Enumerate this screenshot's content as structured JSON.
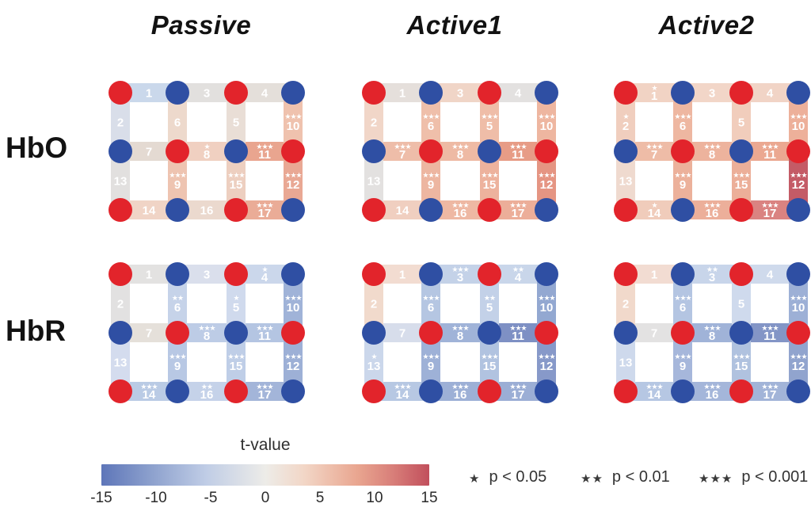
{
  "figure": {
    "col_titles": [
      "Passive",
      "Active1",
      "Active2"
    ],
    "row_labels": [
      "HbO",
      "HbR"
    ],
    "colorbar": {
      "title": "t-value",
      "ticks": [
        "-15",
        "-10",
        "-5",
        "0",
        "5",
        "10",
        "15"
      ],
      "gradient_stops": [
        "#5E76B9 0%",
        "#8CA0CD 15%",
        "#C0CDE6 32%",
        "#EDECE8 50%",
        "#F2D6C6 62%",
        "#E9A690 78%",
        "#D87E79 89%",
        "#C14F5C 100%"
      ]
    },
    "legend": [
      {
        "stars": "★",
        "label": "p < 0.05"
      },
      {
        "stars": "★★",
        "label": "p < 0.01"
      },
      {
        "stars": "★★★",
        "label": "p < 0.001"
      }
    ],
    "optode_colors": {
      "source_red": "#E2242B",
      "detector_blue": "#2F4FA3"
    }
  },
  "chart_data": {
    "type": "heatmap",
    "title": "Channel-wise t-value maps (17 fNIRS channels) for HbO and HbR under Passive, Active1 and Active2 conditions",
    "t_range": [
      -15,
      15
    ],
    "significance_levels": {
      "1": "p < 0.05",
      "2": "p < 0.01",
      "3": "p < 0.001"
    },
    "grid": {
      "optode_pattern": [
        [
          "source",
          "detector",
          "source",
          "detector"
        ],
        [
          "detector",
          "source",
          "detector",
          "source"
        ],
        [
          "source",
          "detector",
          "source",
          "detector"
        ]
      ],
      "h_channels": [
        [
          1,
          3,
          4
        ],
        [
          7,
          8,
          11
        ],
        [
          14,
          16,
          17
        ]
      ],
      "v_channels": [
        [
          2,
          6,
          5,
          10
        ],
        [
          13,
          9,
          15,
          12
        ]
      ]
    },
    "channel_value_format": [
      "color_hex",
      "significance_stars",
      "t_value_estimate"
    ],
    "panels": [
      {
        "row": "HbO",
        "condition": "Passive",
        "channels": {
          "1": [
            "#CAD8EB",
            0,
            -2.5
          ],
          "2": [
            "#D9DEE9",
            0,
            -1
          ],
          "3": [
            "#E2E0DE",
            0,
            0.5
          ],
          "4": [
            "#E4DFDA",
            0,
            1
          ],
          "5": [
            "#E9DED6",
            0,
            1.5
          ],
          "6": [
            "#EDD9CC",
            0,
            2
          ],
          "7": [
            "#E4DAD2",
            0,
            1.5
          ],
          "8": [
            "#F0D0C1",
            1,
            3
          ],
          "9": [
            "#EEC4B1",
            3,
            5
          ],
          "10": [
            "#EFC2AE",
            3,
            5
          ],
          "11": [
            "#E9A58F",
            3,
            7.5
          ],
          "12": [
            "#E9A894",
            3,
            7.5
          ],
          "13": [
            "#E2E0DF",
            0,
            0.5
          ],
          "14": [
            "#F0D4C6",
            0,
            3
          ],
          "15": [
            "#EDCFC0",
            3,
            3.5
          ],
          "16": [
            "#EBD9CE",
            0,
            2
          ],
          "17": [
            "#EAAC97",
            3,
            7
          ]
        }
      },
      {
        "row": "HbO",
        "condition": "Active1",
        "channels": {
          "1": [
            "#E5DFDB",
            0,
            1
          ],
          "2": [
            "#F1D6C8",
            0,
            2.5
          ],
          "3": [
            "#F0D5C7",
            0,
            2.5
          ],
          "4": [
            "#E3E1E0",
            0,
            0.5
          ],
          "5": [
            "#EFBDA8",
            3,
            5
          ],
          "6": [
            "#EFBFAA",
            3,
            5
          ],
          "7": [
            "#EEBDA9",
            3,
            5
          ],
          "8": [
            "#EEBAA4",
            3,
            5.5
          ],
          "9": [
            "#EDB6A1",
            3,
            6
          ],
          "10": [
            "#EEB6A0",
            3,
            6
          ],
          "11": [
            "#E79C86",
            3,
            8
          ],
          "12": [
            "#E59583",
            3,
            8.5
          ],
          "13": [
            "#E3E1E0",
            0,
            0.5
          ],
          "14": [
            "#F0CFC0",
            0,
            3
          ],
          "15": [
            "#EDB29D",
            3,
            6.5
          ],
          "16": [
            "#EEB8A3",
            3,
            5.5
          ],
          "17": [
            "#ECAE99",
            3,
            7
          ]
        }
      },
      {
        "row": "HbO",
        "condition": "Active2",
        "channels": {
          "1": [
            "#F1D3C4",
            1,
            3
          ],
          "2": [
            "#F0CEBE",
            1,
            3.5
          ],
          "3": [
            "#F2D6C8",
            0,
            2.5
          ],
          "4": [
            "#F1D4C6",
            0,
            2.5
          ],
          "5": [
            "#F1CDBC",
            0,
            3.5
          ],
          "6": [
            "#EEB7A1",
            3,
            6
          ],
          "7": [
            "#EEBCA7",
            3,
            5
          ],
          "8": [
            "#EDB39D",
            3,
            6
          ],
          "9": [
            "#ECB19B",
            3,
            6.5
          ],
          "10": [
            "#EDB09A",
            3,
            6.5
          ],
          "11": [
            "#EBA891",
            3,
            7.5
          ],
          "12": [
            "#C45B66",
            3,
            13
          ],
          "13": [
            "#EFDACF",
            0,
            2
          ],
          "14": [
            "#F0CCBB",
            1,
            3.5
          ],
          "15": [
            "#ECAF99",
            3,
            6.5
          ],
          "16": [
            "#ECAF9A",
            3,
            6.5
          ],
          "17": [
            "#DA8381",
            3,
            10
          ]
        }
      },
      {
        "row": "HbR",
        "condition": "Passive",
        "channels": {
          "1": [
            "#E3E2E1",
            0,
            -0.5
          ],
          "2": [
            "#E2E1E1",
            0,
            -0.5
          ],
          "3": [
            "#DADFEC",
            0,
            -1.5
          ],
          "4": [
            "#CBD7EB",
            1,
            -2.5
          ],
          "5": [
            "#D0DAED",
            1,
            -2
          ],
          "6": [
            "#C6D3E9",
            2,
            -3
          ],
          "7": [
            "#E5E0DA",
            0,
            0.5
          ],
          "8": [
            "#BDCCE6",
            3,
            -3.5
          ],
          "9": [
            "#B8C8E4",
            3,
            -4
          ],
          "10": [
            "#A0B3D8",
            3,
            -6
          ],
          "11": [
            "#B4C5E2",
            3,
            -4.5
          ],
          "12": [
            "#9DB0D6",
            3,
            -6
          ],
          "13": [
            "#D4DCEE",
            0,
            -2
          ],
          "14": [
            "#BACBE5",
            3,
            -4
          ],
          "15": [
            "#BFCEE7",
            3,
            -3.5
          ],
          "16": [
            "#C5D2E9",
            2,
            -3
          ],
          "17": [
            "#A3B5D9",
            3,
            -5.5
          ]
        }
      },
      {
        "row": "HbR",
        "condition": "Active1",
        "channels": {
          "1": [
            "#F2DCD1",
            0,
            1.5
          ],
          "2": [
            "#F1DACC",
            0,
            1.5
          ],
          "3": [
            "#C4D2E8",
            3,
            -3
          ],
          "4": [
            "#C9D6EA",
            2,
            -2.5
          ],
          "5": [
            "#C3D1E8",
            2,
            -3
          ],
          "6": [
            "#B5C6E2",
            3,
            -4.5
          ],
          "7": [
            "#D7DDEB",
            0,
            -1.5
          ],
          "8": [
            "#A0B3D8",
            3,
            -6
          ],
          "9": [
            "#9EB1D7",
            3,
            -6
          ],
          "10": [
            "#93A8D1",
            3,
            -7
          ],
          "11": [
            "#7E90C4",
            3,
            -9
          ],
          "12": [
            "#8799C9",
            3,
            -8
          ],
          "13": [
            "#CBD7EB",
            1,
            -2.5
          ],
          "14": [
            "#B7C8E3",
            3,
            -4
          ],
          "15": [
            "#B1C3E0",
            3,
            -4.5
          ],
          "16": [
            "#9DB0D6",
            3,
            -6
          ],
          "17": [
            "#9BAED5",
            3,
            -6.5
          ]
        }
      },
      {
        "row": "HbR",
        "condition": "Active2",
        "channels": {
          "1": [
            "#F2DCD2",
            0,
            1.5
          ],
          "2": [
            "#F1D9CB",
            0,
            1.5
          ],
          "3": [
            "#C8D5EA",
            2,
            -2.5
          ],
          "4": [
            "#CFDAEC",
            0,
            -2
          ],
          "5": [
            "#CFDAED",
            0,
            -2
          ],
          "6": [
            "#B4C5E2",
            3,
            -4.5
          ],
          "7": [
            "#E3E2E2",
            0,
            -0.5
          ],
          "8": [
            "#A0B3D8",
            3,
            -6
          ],
          "9": [
            "#A6B7DB",
            3,
            -5.5
          ],
          "10": [
            "#9DB0D6",
            3,
            -6
          ],
          "11": [
            "#8395C6",
            3,
            -8.5
          ],
          "12": [
            "#91A4CE",
            3,
            -7.5
          ],
          "13": [
            "#CED9EC",
            0,
            -2
          ],
          "14": [
            "#B6C7E3",
            3,
            -4
          ],
          "15": [
            "#B0C2DF",
            3,
            -4.5
          ],
          "16": [
            "#A4B6DA",
            3,
            -5.5
          ],
          "17": [
            "#A2B4D8",
            3,
            -5.5
          ]
        }
      }
    ]
  }
}
